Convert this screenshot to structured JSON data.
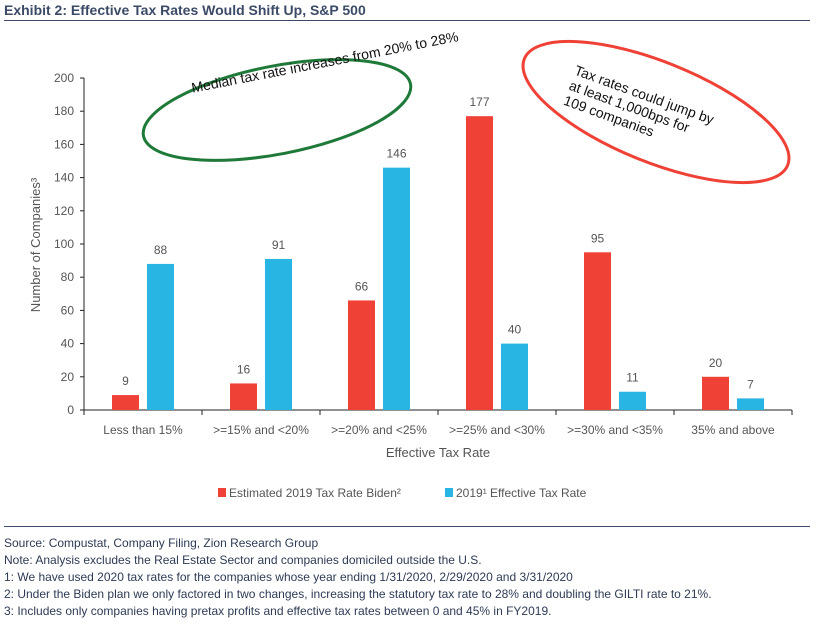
{
  "title": "Exhibit 2: Effective Tax Rates Would Shift Up, S&P 500",
  "chart_data": {
    "type": "bar",
    "categories": [
      "Less than 15%",
      ">=15% and <20%",
      ">=20% and <25%",
      ">=25% and <30%",
      ">=30% and <35%",
      "35% and above"
    ],
    "series": [
      {
        "name": "Estimated 2019 Tax Rate Biden²",
        "color": "#ef4136",
        "values": [
          9,
          16,
          66,
          177,
          95,
          20
        ]
      },
      {
        "name": "2019¹ Effective Tax Rate",
        "color": "#29b5e3",
        "values": [
          88,
          91,
          146,
          40,
          11,
          7
        ]
      }
    ],
    "xlabel": "Effective Tax Rate",
    "ylabel": "Number of Companies³",
    "ylim": [
      0,
      200
    ],
    "yticks": [
      0,
      20,
      40,
      60,
      80,
      100,
      120,
      140,
      160,
      180,
      200
    ],
    "grid": false,
    "legend": "bottom",
    "annotations": [
      {
        "text": "Median tax rate increases from 20% to 28%",
        "color": "#1f7a3a"
      },
      {
        "text": "Tax rates could jump by at least 1,000bps for 109 companies",
        "color": "#ef4136"
      }
    ]
  },
  "footer": [
    "Source: Compustat, Company Filing, Zion Research Group",
    "Note: Analysis excludes the Real Estate Sector and companies domiciled outside the U.S.",
    "1: We have used 2020 tax rates for the companies whose year ending 1/31/2020, 2/29/2020 and 3/31/2020",
    "2: Under the Biden plan we only factored in two changes, increasing the statutory tax rate to 28% and doubling the GILTI rate to 21%.",
    "3: Includes only companies having pretax profits and effective tax rates between 0 and 45% in FY2019."
  ]
}
